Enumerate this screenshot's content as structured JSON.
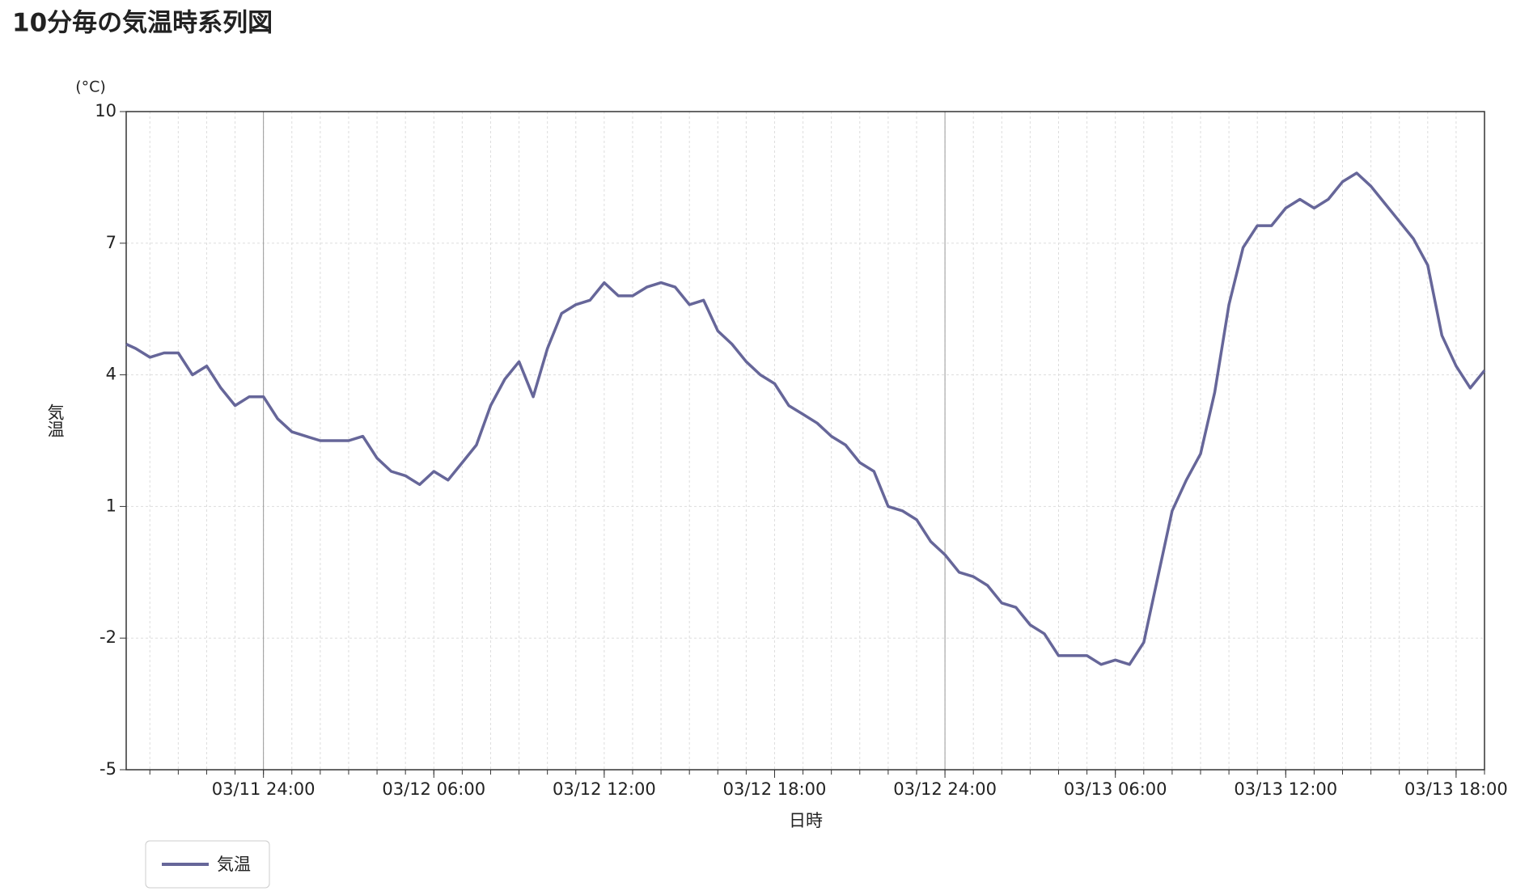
{
  "chart_data": {
    "type": "line",
    "title": "10分毎の気温時系列図",
    "y_unit": "(°C)",
    "ylabel": "気温",
    "xlabel": "日時",
    "x": [
      "03/11 19:10",
      "03/11 19:30",
      "03/11 20:00",
      "03/11 20:30",
      "03/11 21:00",
      "03/11 21:30",
      "03/11 22:00",
      "03/11 22:30",
      "03/11 23:00",
      "03/11 23:30",
      "03/11 24:00",
      "03/12 00:30",
      "03/12 01:00",
      "03/12 01:30",
      "03/12 02:00",
      "03/12 02:30",
      "03/12 03:00",
      "03/12 03:30",
      "03/12 04:00",
      "03/12 04:30",
      "03/12 05:00",
      "03/12 05:30",
      "03/12 06:00",
      "03/12 06:30",
      "03/12 07:00",
      "03/12 07:30",
      "03/12 08:00",
      "03/12 08:30",
      "03/12 09:00",
      "03/12 09:30",
      "03/12 10:00",
      "03/12 10:30",
      "03/12 11:00",
      "03/12 11:30",
      "03/12 12:00",
      "03/12 12:30",
      "03/12 13:00",
      "03/12 13:30",
      "03/12 14:00",
      "03/12 14:30",
      "03/12 15:00",
      "03/12 15:30",
      "03/12 16:00",
      "03/12 16:30",
      "03/12 17:00",
      "03/12 17:30",
      "03/12 18:00",
      "03/12 18:30",
      "03/12 19:00",
      "03/12 19:30",
      "03/12 20:00",
      "03/12 20:30",
      "03/12 21:00",
      "03/12 21:30",
      "03/12 22:00",
      "03/12 22:30",
      "03/12 23:00",
      "03/12 23:30",
      "03/12 24:00",
      "03/13 00:30",
      "03/13 01:00",
      "03/13 01:30",
      "03/13 02:00",
      "03/13 02:30",
      "03/13 03:00",
      "03/13 03:30",
      "03/13 04:00",
      "03/13 04:30",
      "03/13 05:00",
      "03/13 05:30",
      "03/13 06:00",
      "03/13 06:30",
      "03/13 07:00",
      "03/13 07:30",
      "03/13 08:00",
      "03/13 08:30",
      "03/13 09:00",
      "03/13 09:30",
      "03/13 10:00",
      "03/13 10:30",
      "03/13 11:00",
      "03/13 11:30",
      "03/13 12:00",
      "03/13 12:30",
      "03/13 13:00",
      "03/13 13:30",
      "03/13 14:00",
      "03/13 14:30",
      "03/13 15:00",
      "03/13 15:30",
      "03/13 16:00",
      "03/13 16:30",
      "03/13 17:00",
      "03/13 17:30",
      "03/13 18:00",
      "03/13 18:30",
      "03/13 19:00"
    ],
    "series": [
      {
        "name": "気温",
        "color": "#666699",
        "values": [
          4.7,
          4.6,
          4.4,
          4.5,
          4.5,
          4.0,
          4.2,
          3.7,
          3.3,
          3.5,
          3.5,
          3.0,
          2.7,
          2.6,
          2.5,
          2.5,
          2.5,
          2.6,
          2.1,
          1.8,
          1.7,
          1.5,
          1.8,
          1.6,
          2.0,
          2.4,
          3.3,
          3.9,
          4.3,
          3.5,
          4.6,
          5.4,
          5.6,
          5.7,
          6.1,
          5.8,
          5.8,
          6.0,
          6.1,
          6.0,
          5.6,
          5.7,
          5.0,
          4.7,
          4.3,
          4.0,
          3.8,
          3.3,
          3.1,
          2.9,
          2.6,
          2.4,
          2.0,
          1.8,
          1.0,
          0.9,
          0.7,
          0.2,
          -0.1,
          -0.5,
          -0.6,
          -0.8,
          -1.2,
          -1.3,
          -1.7,
          -1.9,
          -2.4,
          -2.4,
          -2.4,
          -2.6,
          -2.5,
          -2.6,
          -2.1,
          -0.6,
          0.9,
          1.6,
          2.2,
          3.6,
          5.6,
          6.9,
          7.4,
          7.4,
          7.8,
          8.0,
          7.8,
          8.0,
          8.4,
          8.6,
          8.3,
          7.9,
          7.5,
          7.1,
          6.5,
          4.9,
          4.2,
          3.7,
          4.1
        ]
      }
    ],
    "xlim": [
      "03/11 19:10",
      "03/13 19:00"
    ],
    "xticks": [
      "03/11 24:00",
      "03/12 06:00",
      "03/12 12:00",
      "03/12 18:00",
      "03/12 24:00",
      "03/13 06:00",
      "03/13 12:00",
      "03/13 18:00"
    ],
    "ylim": [
      -5,
      10
    ],
    "yticks": [
      -5,
      -2,
      1,
      4,
      7,
      10
    ],
    "grid": true
  }
}
